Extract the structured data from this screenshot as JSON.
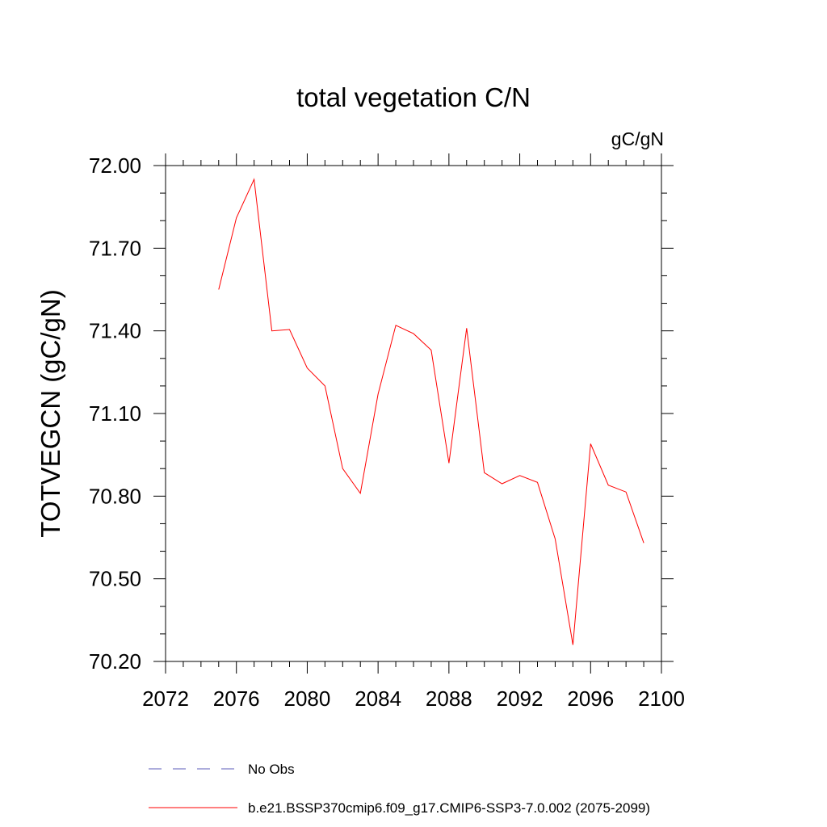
{
  "chart_data": {
    "type": "line",
    "title": "total vegetation C/N",
    "units_label": "gC/gN",
    "xlabel": "",
    "ylabel": "TOTVEGCN  (gC/gN)",
    "xlim": [
      2072,
      2100
    ],
    "ylim": [
      70.2,
      72.0
    ],
    "x_ticks": [
      2072,
      2076,
      2080,
      2084,
      2088,
      2092,
      2096,
      2100
    ],
    "y_ticks": [
      "70.20",
      "70.50",
      "70.80",
      "71.10",
      "71.40",
      "71.70",
      "72.00"
    ],
    "grid": false,
    "series": [
      {
        "name": "b.e21.BSSP370cmip6.f09_g17.CMIP6-SSP3-7.0.002 (2075-2099)",
        "color": "#ff0000",
        "style": "solid",
        "x": [
          2075,
          2076,
          2077,
          2078,
          2079,
          2080,
          2081,
          2082,
          2083,
          2084,
          2085,
          2086,
          2087,
          2088,
          2089,
          2090,
          2091,
          2092,
          2093,
          2094,
          2095,
          2096,
          2097,
          2098,
          2099
        ],
        "y": [
          71.55,
          71.81,
          71.95,
          71.4,
          71.405,
          71.265,
          71.2,
          70.9,
          70.81,
          71.17,
          71.42,
          71.39,
          71.33,
          70.92,
          71.41,
          70.885,
          70.845,
          70.875,
          70.85,
          70.645,
          70.26,
          70.99,
          70.84,
          70.815,
          70.63
        ]
      }
    ],
    "legend": [
      {
        "label": "No Obs",
        "color": "#5b5bb8",
        "style": "dashed"
      },
      {
        "label": "b.e21.BSSP370cmip6.f09_g17.CMIP6-SSP3-7.0.002 (2075-2099)",
        "color": "#ff0000",
        "style": "solid"
      }
    ]
  }
}
